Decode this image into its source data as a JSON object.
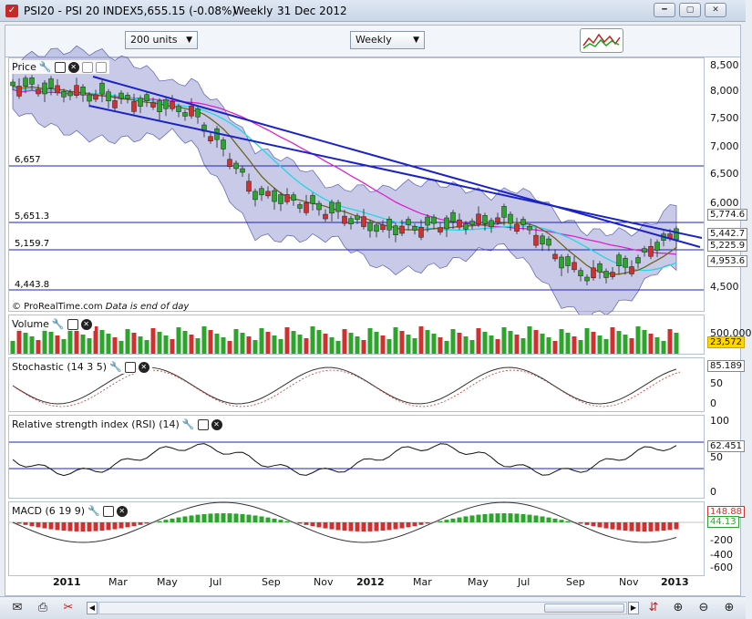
{
  "window": {
    "title": "PSI20 - PSI 20 INDEX",
    "price": "5,655.15 (-0.08%)",
    "period": "Weekly",
    "date": "31 Dec 2012"
  },
  "toolbar": {
    "units_label": "200 units",
    "period_label": "Weekly"
  },
  "price_panel": {
    "title": "Price",
    "copyright": "© ProRealTime.com",
    "note": "Data is end of day",
    "axis_ticks": [
      "8,500",
      "8,000",
      "7,500",
      "7,000",
      "6,500",
      "6,000",
      "4,500"
    ],
    "line_labels": [
      "6,657",
      "5,651.3",
      "5,159.7",
      "4,443.8"
    ],
    "value_boxes": [
      "5,774.6",
      "5,442.7",
      "5,225.9",
      "4,953.6"
    ]
  },
  "volume_panel": {
    "title": "Volume",
    "axis_tick": "500,000",
    "value": "23,572"
  },
  "stochastic_panel": {
    "title": "Stochastic (14 3 5)",
    "axis_ticks": [
      "50",
      "0"
    ],
    "value": "85.189"
  },
  "rsi_panel": {
    "title": "Relative strength index (RSI) (14)",
    "axis_ticks": [
      "100",
      "50",
      "0"
    ],
    "value": "62.451"
  },
  "macd_panel": {
    "title": "MACD (6 19 9)",
    "axis_ticks": [
      "-200",
      "-400",
      "-600"
    ],
    "value_top": "148.88",
    "value_bottom": "44.13"
  },
  "xaxis": {
    "labels": [
      "2011",
      "Mar",
      "May",
      "Jul",
      "Sep",
      "Nov",
      "2012",
      "Mar",
      "May",
      "Jul",
      "Sep",
      "Nov",
      "2013"
    ]
  },
  "colors": {
    "band": "#9b9fd6",
    "trend": "#1a22c8",
    "ma_magenta": "#e020d0",
    "ma_cyan": "#22d6e6",
    "ma_olive": "#6e6420",
    "up": "#2ca52c",
    "down": "#d03030"
  }
}
